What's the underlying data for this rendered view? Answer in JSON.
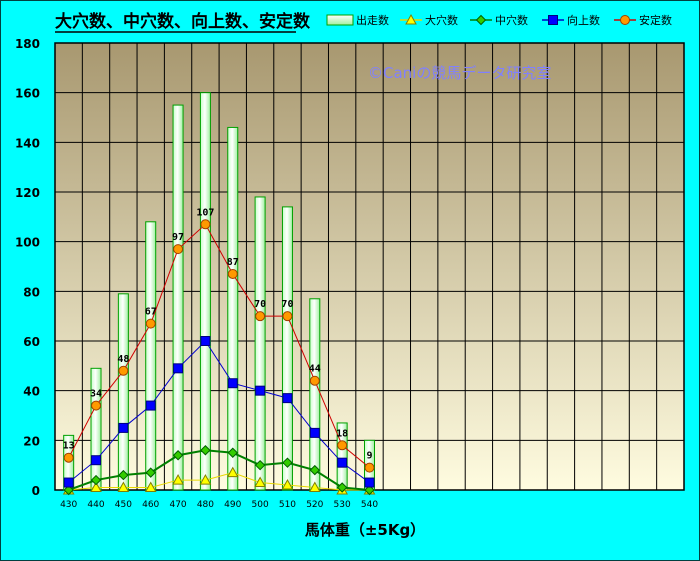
{
  "chart_data": {
    "type": "bar",
    "title": "大穴数、中穴数、向上数、安定数",
    "watermark": "©Caniの競馬データ研究室",
    "xlabel": "馬体重（±5Kg）",
    "ylabel": "",
    "ylim": [
      0,
      180
    ],
    "yticks": [
      0,
      20,
      40,
      60,
      80,
      100,
      120,
      140,
      160,
      180
    ],
    "grid": true,
    "legend_position": "top-right",
    "categories": [
      "430",
      "440",
      "450",
      "460",
      "470",
      "480",
      "490",
      "500",
      "510",
      "520",
      "530",
      "540"
    ],
    "extra_slots": 11,
    "series": [
      {
        "name": "出走数",
        "kind": "bar",
        "color": "#00a000",
        "values": [
          22,
          49,
          79,
          108,
          155,
          160,
          146,
          118,
          114,
          77,
          27,
          20
        ]
      },
      {
        "name": "大穴数",
        "kind": "line",
        "color": "#e8d800",
        "marker": "triangle",
        "values": [
          0,
          1,
          1,
          1,
          4,
          4,
          7,
          3,
          2,
          1,
          0,
          0
        ]
      },
      {
        "name": "中穴数",
        "kind": "line",
        "color": "#008000",
        "marker": "diamond",
        "values": [
          0,
          4,
          6,
          7,
          14,
          16,
          15,
          10,
          11,
          8,
          1,
          0
        ]
      },
      {
        "name": "向上数",
        "kind": "line",
        "color": "#0000cc",
        "marker": "square",
        "values": [
          3,
          12,
          25,
          34,
          49,
          60,
          43,
          40,
          37,
          23,
          11,
          3
        ]
      },
      {
        "name": "安定数",
        "kind": "line",
        "color": "#d00000",
        "marker": "circle",
        "values": [
          13,
          34,
          48,
          67,
          97,
          107,
          87,
          70,
          70,
          44,
          18,
          9
        ],
        "data_labels": [
          "13",
          "34",
          "48",
          "67",
          "97",
          "107",
          "87",
          "70",
          "70",
          "44",
          "18",
          "9"
        ]
      }
    ]
  },
  "colors": {
    "frame_bg": "#00ffff",
    "frame_border": "#004040",
    "plot_top": "#a89870",
    "plot_bottom": "#fffce0",
    "gridline": "#000000",
    "watermark": "#8080ff",
    "marker_fill_circle": "#ff9900",
    "marker_fill_square": "#0000ff",
    "marker_fill_diamond": "#33cc00",
    "marker_fill_triangle": "#ffff00"
  }
}
